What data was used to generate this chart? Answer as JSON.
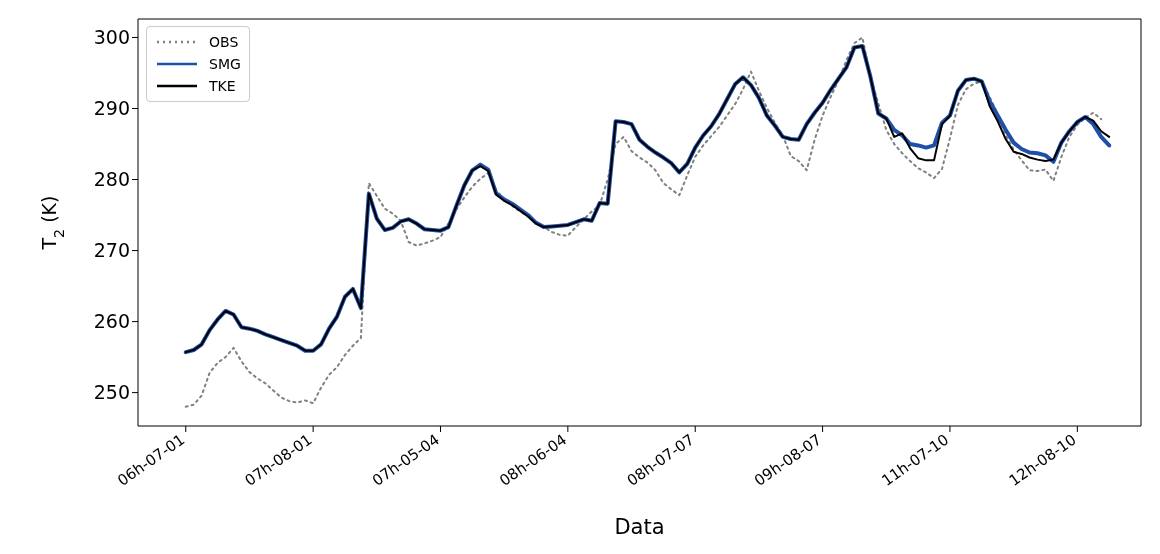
{
  "chart_data": {
    "type": "line",
    "xlabel": "Data",
    "ylabel": "T$_{2}$ (K)",
    "legend": "top left",
    "categories": [
      "06h-07-01",
      null,
      null,
      null,
      null,
      null,
      null,
      null,
      null,
      null,
      null,
      null,
      null,
      null,
      null,
      null,
      "07h-08-01",
      null,
      null,
      null,
      null,
      null,
      null,
      null,
      null,
      null,
      null,
      null,
      null,
      null,
      null,
      null,
      "07h-05-04",
      null,
      null,
      null,
      null,
      null,
      null,
      null,
      null,
      null,
      null,
      null,
      null,
      null,
      null,
      null,
      "08h-06-04",
      null,
      null,
      null,
      null,
      null,
      null,
      null,
      null,
      null,
      null,
      null,
      null,
      null,
      null,
      null,
      "08h-07-07",
      null,
      null,
      null,
      null,
      null,
      null,
      null,
      null,
      null,
      null,
      null,
      null,
      null,
      null,
      null,
      "09h-08-07",
      null,
      null,
      null,
      null,
      null,
      null,
      null,
      null,
      null,
      null,
      null,
      null,
      null,
      null,
      null,
      "11h-07-10",
      null,
      null,
      null,
      null,
      null,
      null,
      null,
      null,
      null,
      null,
      null,
      null,
      null,
      null,
      null,
      "12h-08-10",
      null,
      null,
      null,
      null
    ],
    "ylim": [
      245.3,
      302.6
    ],
    "yticks": [
      250,
      260,
      270,
      280,
      290,
      300
    ],
    "series": [
      {
        "name": "OBS",
        "color": "#808080",
        "line_style": "dotted",
        "values": [
          248.0,
          248.3,
          249.6,
          252.8,
          254.2,
          255.0,
          256.3,
          254.4,
          252.9,
          252.0,
          251.3,
          250.3,
          249.3,
          248.8,
          248.6,
          248.9,
          248.5,
          250.7,
          252.5,
          253.6,
          255.3,
          256.6,
          257.7,
          279.5,
          277.7,
          275.9,
          275.2,
          274.2,
          271.2,
          270.7,
          271.0,
          271.4,
          271.9,
          273.8,
          275.8,
          277.5,
          279.0,
          280.1,
          280.9,
          278.5,
          277.2,
          276.3,
          275.5,
          274.8,
          274.1,
          273.3,
          272.6,
          272.2,
          272.1,
          273.3,
          274.4,
          275.5,
          276.4,
          280.0,
          285.0,
          286.0,
          284.0,
          283.1,
          282.4,
          281.3,
          279.5,
          278.6,
          277.8,
          280.6,
          283.2,
          284.8,
          286.1,
          287.4,
          289.0,
          290.6,
          292.7,
          295.2,
          292.5,
          290.1,
          288.0,
          286.2,
          283.3,
          282.6,
          281.3,
          285.6,
          289.0,
          291.6,
          294.0,
          296.8,
          299.2,
          300.0,
          294.5,
          290.7,
          287.0,
          285.0,
          283.7,
          282.6,
          281.6,
          281.0,
          280.2,
          281.5,
          285.8,
          290.5,
          292.7,
          293.5,
          293.8,
          291.6,
          289.2,
          286.3,
          284.2,
          282.7,
          281.3,
          281.2,
          281.4,
          279.8,
          283.2,
          286.0,
          287.7,
          288.7,
          289.4,
          288.5,
          null
        ]
      },
      {
        "name": "SMG",
        "color": "#1f4fa8",
        "line_style": "solid",
        "values": [
          255.7,
          256.0,
          256.8,
          258.8,
          260.3,
          261.5,
          261.0,
          259.2,
          259.0,
          258.7,
          258.2,
          257.8,
          257.4,
          257.0,
          256.6,
          255.9,
          255.9,
          256.8,
          259.0,
          260.7,
          263.5,
          264.6,
          261.9,
          278.0,
          274.5,
          272.9,
          273.2,
          274.1,
          274.4,
          273.8,
          273.0,
          272.9,
          272.8,
          273.3,
          276.3,
          279.2,
          281.3,
          282.1,
          281.4,
          278.0,
          277.2,
          276.6,
          275.8,
          275.0,
          273.9,
          273.3,
          273.4,
          273.5,
          273.6,
          274.0,
          274.4,
          274.2,
          276.7,
          276.6,
          288.2,
          288.1,
          287.8,
          285.6,
          284.6,
          283.8,
          283.1,
          282.3,
          281.0,
          282.2,
          284.5,
          286.2,
          287.5,
          289.2,
          291.3,
          293.4,
          294.4,
          293.3,
          291.5,
          289.0,
          287.6,
          286.0,
          285.7,
          285.6,
          287.8,
          289.4,
          290.8,
          292.6,
          294.2,
          295.8,
          298.6,
          298.8,
          294.5,
          289.3,
          288.6,
          287.0,
          286.2,
          285.0,
          284.8,
          284.5,
          284.8,
          288.0,
          289.0,
          292.5,
          294.0,
          294.2,
          293.8,
          291.0,
          289.0,
          287.0,
          285.2,
          284.3,
          283.8,
          283.7,
          283.4,
          282.5,
          285.2,
          286.8,
          288.1,
          288.8,
          287.8,
          286.0,
          284.8
        ]
      },
      {
        "name": "TKE",
        "color": "#000000",
        "line_style": "solid",
        "values": [
          255.7,
          256.0,
          256.8,
          258.8,
          260.3,
          261.5,
          261.0,
          259.2,
          259.0,
          258.7,
          258.2,
          257.8,
          257.4,
          257.0,
          256.6,
          255.9,
          255.9,
          256.8,
          259.0,
          260.7,
          263.5,
          264.6,
          261.9,
          278.0,
          274.5,
          272.9,
          273.2,
          274.1,
          274.4,
          273.8,
          273.0,
          272.9,
          272.8,
          273.3,
          276.3,
          279.2,
          281.3,
          281.9,
          281.2,
          277.9,
          277.0,
          276.4,
          275.6,
          274.8,
          273.8,
          273.3,
          273.4,
          273.5,
          273.6,
          274.0,
          274.4,
          274.2,
          276.7,
          276.6,
          288.2,
          288.1,
          287.8,
          285.6,
          284.6,
          283.8,
          283.1,
          282.3,
          281.0,
          282.2,
          284.5,
          286.2,
          287.5,
          289.2,
          291.3,
          293.4,
          294.4,
          293.3,
          291.5,
          289.0,
          287.6,
          286.0,
          285.7,
          285.6,
          287.8,
          289.4,
          290.8,
          292.6,
          294.2,
          295.8,
          298.6,
          298.8,
          294.5,
          289.3,
          288.6,
          286.0,
          286.5,
          284.4,
          283.0,
          282.7,
          282.7,
          287.8,
          289.0,
          292.5,
          294.0,
          294.2,
          293.8,
          290.3,
          288.2,
          285.7,
          283.9,
          283.6,
          283.1,
          282.8,
          282.6,
          282.8,
          285.2,
          286.8,
          288.1,
          288.8,
          288.3,
          286.8,
          286.0
        ]
      }
    ]
  }
}
